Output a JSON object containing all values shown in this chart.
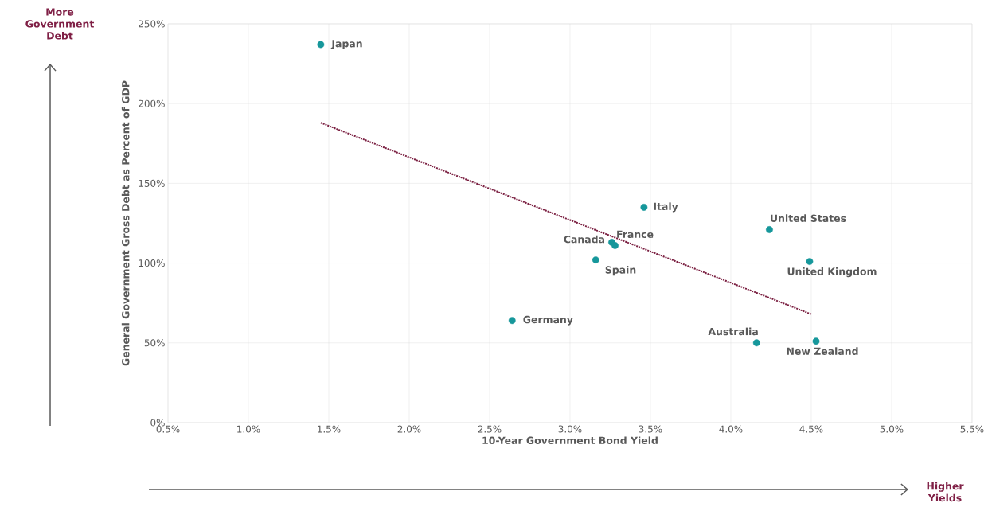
{
  "chart_data": {
    "type": "scatter",
    "xlabel": "10-Year Government Bond Yield",
    "ylabel": "General Government Gross Debt as Percent of GDP",
    "xlim": [
      0.5,
      5.5
    ],
    "ylim": [
      0,
      250
    ],
    "xticks": [
      {
        "value": 0.5,
        "label": "0.5%"
      },
      {
        "value": 1.0,
        "label": "1.0%"
      },
      {
        "value": 1.5,
        "label": "1.5%"
      },
      {
        "value": 2.0,
        "label": "2.0%"
      },
      {
        "value": 2.5,
        "label": "2.5%"
      },
      {
        "value": 3.0,
        "label": "3.0%"
      },
      {
        "value": 3.5,
        "label": "3.5%"
      },
      {
        "value": 4.0,
        "label": "4.0%"
      },
      {
        "value": 4.5,
        "label": "4.5%"
      },
      {
        "value": 5.0,
        "label": "5.0%"
      },
      {
        "value": 5.5,
        "label": "5.5%"
      }
    ],
    "yticks": [
      {
        "value": 0,
        "label": "0%"
      },
      {
        "value": 50,
        "label": "50%"
      },
      {
        "value": 100,
        "label": "100%"
      },
      {
        "value": 150,
        "label": "150%"
      },
      {
        "value": 200,
        "label": "200%"
      },
      {
        "value": 250,
        "label": "250%"
      }
    ],
    "grid": true,
    "marker": "circle",
    "series": [
      {
        "name": "Japan",
        "color": "#16979b",
        "x": [
          1.45
        ],
        "values": [
          237
        ]
      },
      {
        "name": "Germany",
        "color": "#16979b",
        "x": [
          2.64
        ],
        "values": [
          64
        ]
      },
      {
        "name": "Spain",
        "color": "#16979b",
        "x": [
          3.16
        ],
        "values": [
          102
        ]
      },
      {
        "name": "Canada",
        "color": "#16979b",
        "x": [
          3.26
        ],
        "values": [
          113
        ]
      },
      {
        "name": "France",
        "color": "#16979b",
        "x": [
          3.28
        ],
        "values": [
          111
        ]
      },
      {
        "name": "Italy",
        "color": "#16979b",
        "x": [
          3.46
        ],
        "values": [
          135
        ]
      },
      {
        "name": "United States",
        "color": "#16979b",
        "x": [
          4.24
        ],
        "values": [
          121
        ]
      },
      {
        "name": "United Kingdom",
        "color": "#16979b",
        "x": [
          4.49
        ],
        "values": [
          101
        ]
      },
      {
        "name": "Australia",
        "color": "#16979b",
        "x": [
          4.16
        ],
        "values": [
          50
        ]
      },
      {
        "name": "New Zealand",
        "color": "#16979b",
        "x": [
          4.53
        ],
        "values": [
          51
        ]
      },
      {
        "type": "line",
        "color": "#7b2042",
        "x": [
          1.45,
          4.5
        ],
        "values": [
          188,
          68
        ],
        "line_style": "dotted",
        "marker": "none"
      }
    ],
    "annotations": [
      "More Government Debt",
      "Higher Yields"
    ]
  }
}
